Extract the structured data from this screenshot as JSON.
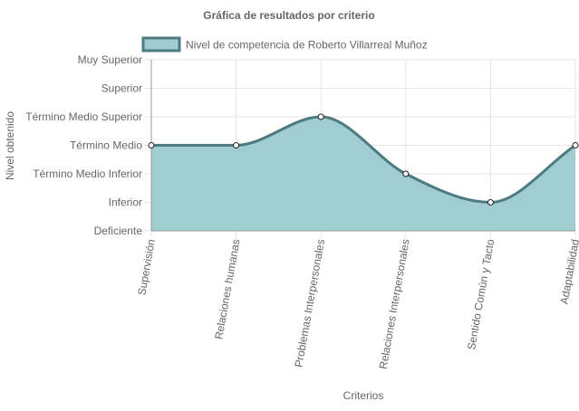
{
  "chart_data": {
    "type": "area",
    "title": "Gráfica de resultados por criterio",
    "xlabel": "Criterios",
    "ylabel": "Nivel obtenido",
    "y_levels": [
      "Deficiente",
      "Inferior",
      "Término Medio Inferior",
      "Término Medio",
      "Término Medio Superior",
      "Superior",
      "Muy Superior"
    ],
    "ylim": [
      0,
      6
    ],
    "categories": [
      "Supervisión",
      "Relaciones humanas",
      "Problemas Interpersonales",
      "Relaciones Interpersonales",
      "Sentido Común y Tacto",
      "Adaptabilidad"
    ],
    "series": [
      {
        "name": "Nivel de competencia de Roberto Villarreal Muñoz",
        "values": [
          3,
          3,
          4,
          2,
          1,
          3
        ],
        "value_labels": [
          "Término Medio",
          "Término Medio",
          "Término Medio Superior",
          "Término Medio Inferior",
          "Inferior",
          "Término Medio"
        ]
      }
    ],
    "grid": true,
    "legend_position": "top",
    "curve": "smooth",
    "colors": {
      "line": "#4e7a82",
      "fill": "#9fcdd0",
      "point_fill": "#ffffff",
      "grid": "#e6e6e6",
      "axis": "#999999",
      "text": "#666666"
    }
  }
}
